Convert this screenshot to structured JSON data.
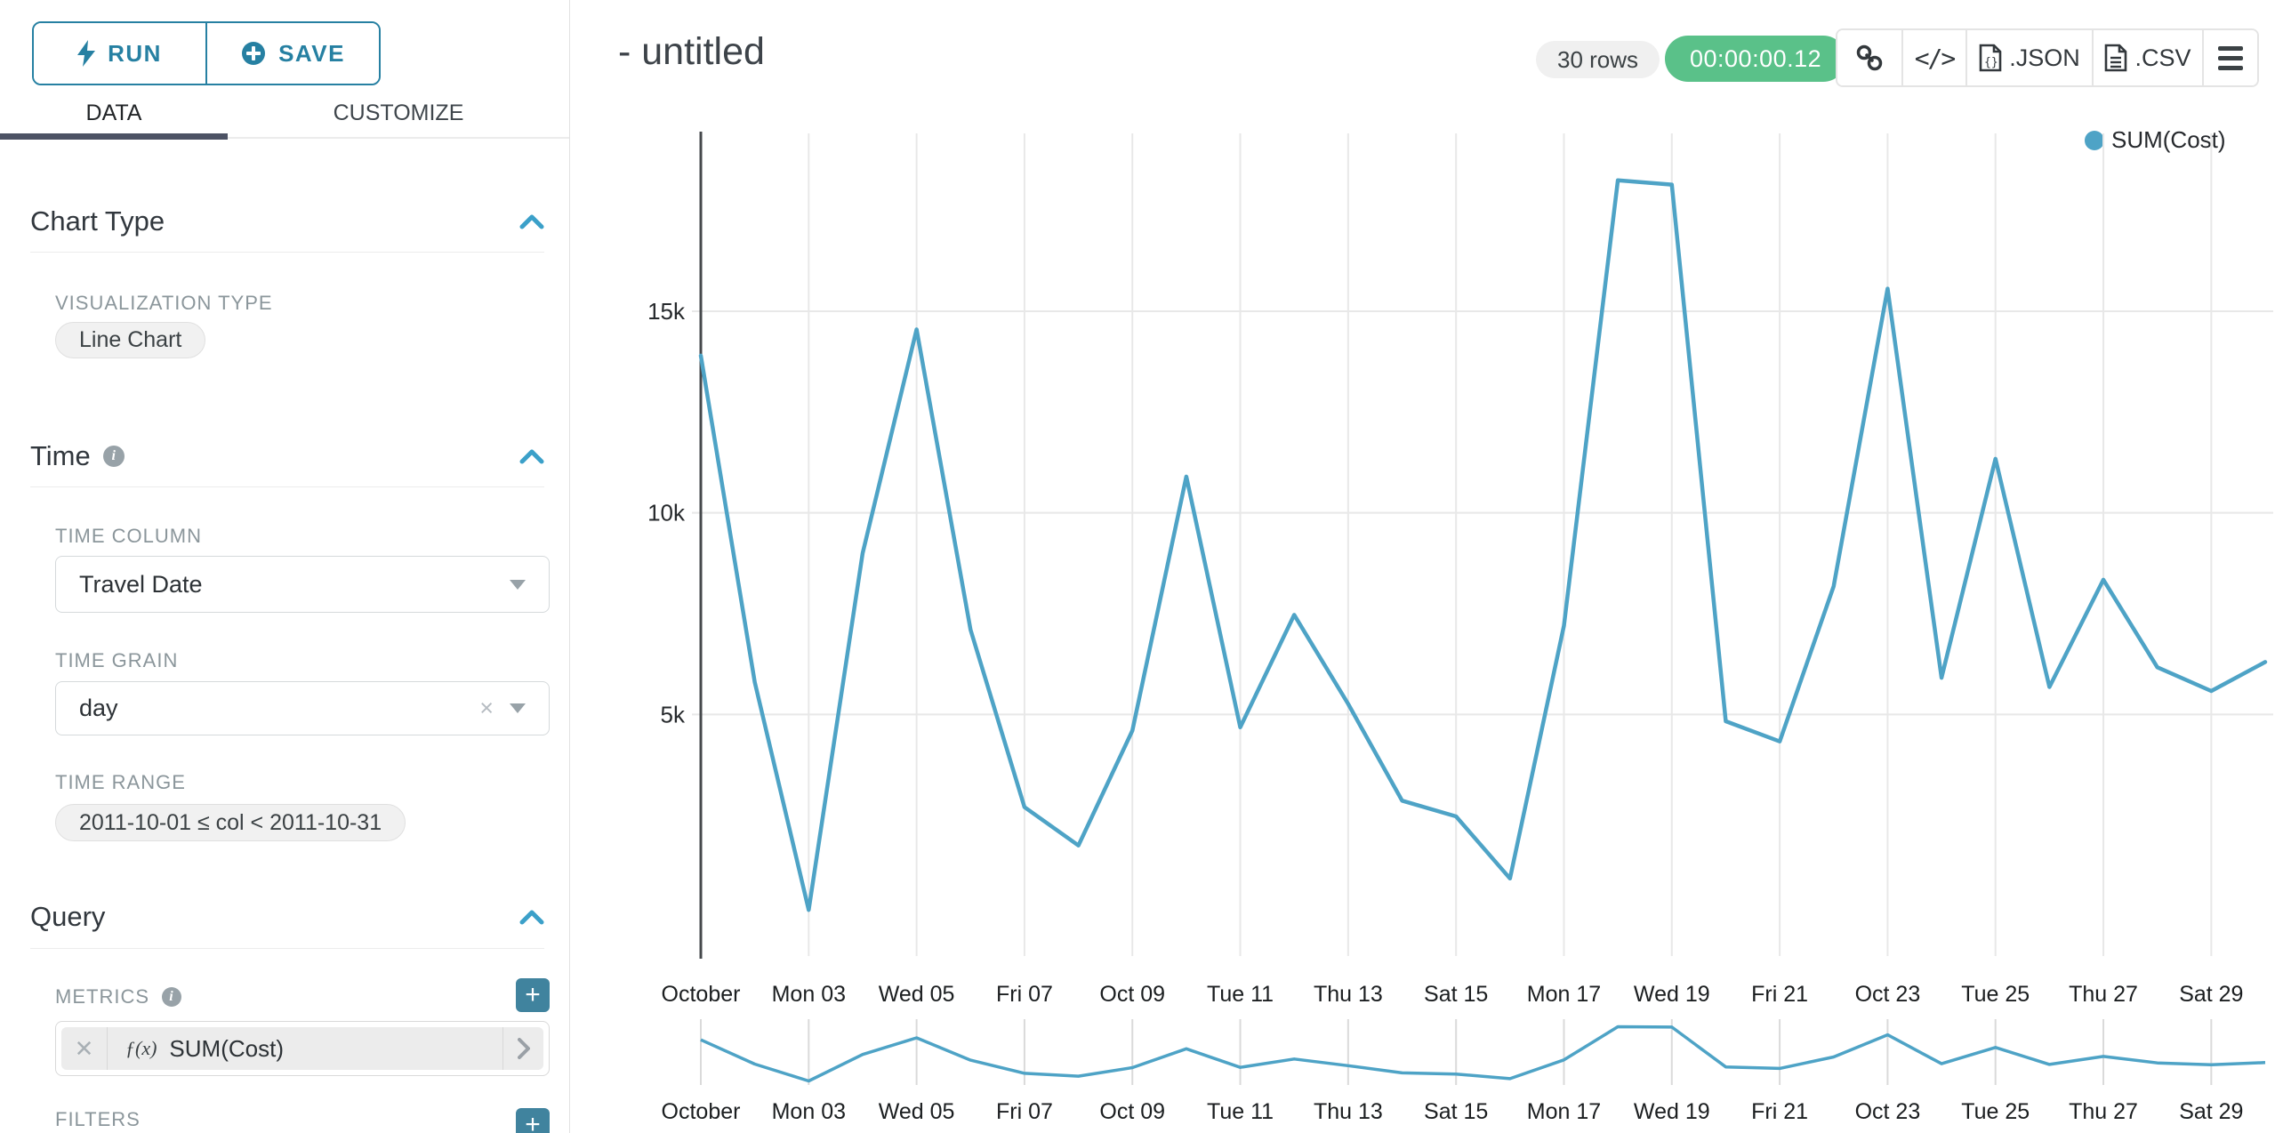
{
  "colors": {
    "accent_teal": "#2680a2",
    "chevron_teal": "#3ba0c9",
    "plus_button_teal": "#40839e",
    "success_green": "#5ac189",
    "line_teal": "#4ea3c6",
    "tab_underline": "#4c5264"
  },
  "sidebar": {
    "run_label": "RUN",
    "save_label": "SAVE",
    "tabs": [
      {
        "label": "DATA",
        "active": true
      },
      {
        "label": "CUSTOMIZE",
        "active": false
      }
    ],
    "chart_type": {
      "title": "Chart Type",
      "viz_label": "VISUALIZATION TYPE",
      "viz_value": "Line Chart"
    },
    "time": {
      "title": "Time",
      "column_label": "TIME COLUMN",
      "column_value": "Travel Date",
      "grain_label": "TIME GRAIN",
      "grain_value": "day",
      "range_label": "TIME RANGE",
      "range_value": "2011-10-01 ≤ col < 2011-10-31"
    },
    "query": {
      "title": "Query",
      "metrics_label": "METRICS",
      "metric_fx": "ƒ(x)",
      "metric_value": "SUM(Cost)",
      "filters_label": "FILTERS"
    }
  },
  "header": {
    "title": "- untitled",
    "rows_badge": "30 rows",
    "timer_badge": "00:00:00.12",
    "code_label": "</>",
    "json_label": ".JSON",
    "csv_label": ".CSV"
  },
  "legend": {
    "label": "SUM(Cost)"
  },
  "chart_data": {
    "type": "line",
    "title": "",
    "xlabel": "",
    "ylabel": "",
    "x": [
      "2011-10-01",
      "2011-10-02",
      "2011-10-03",
      "2011-10-04",
      "2011-10-05",
      "2011-10-06",
      "2011-10-07",
      "2011-10-08",
      "2011-10-09",
      "2011-10-10",
      "2011-10-11",
      "2011-10-12",
      "2011-10-13",
      "2011-10-14",
      "2011-10-15",
      "2011-10-16",
      "2011-10-17",
      "2011-10-18",
      "2011-10-19",
      "2011-10-20",
      "2011-10-21",
      "2011-10-22",
      "2011-10-23",
      "2011-10-24",
      "2011-10-25",
      "2011-10-26",
      "2011-10-27",
      "2011-10-28",
      "2011-10-29",
      "2011-10-30"
    ],
    "series": [
      {
        "name": "SUM(Cost)",
        "color": "#4ea3c6",
        "values": [
          13900,
          5800,
          150,
          9000,
          14550,
          7100,
          2700,
          1750,
          4600,
          10900,
          4680,
          7470,
          5260,
          2860,
          2470,
          930,
          7200,
          18250,
          18140,
          4830,
          4330,
          8180,
          15560,
          5910,
          11340,
          5680,
          8340,
          6170,
          5580,
          6300
        ]
      }
    ],
    "x_tick_indices": [
      0,
      2,
      4,
      6,
      8,
      10,
      12,
      14,
      16,
      18,
      20,
      22,
      24,
      26,
      28
    ],
    "x_tick_labels": [
      "October",
      "Mon 03",
      "Wed 05",
      "Fri 07",
      "Oct 09",
      "Tue 11",
      "Thu 13",
      "Sat 15",
      "Mon 17",
      "Wed 19",
      "Fri 21",
      "Oct 23",
      "Tue 25",
      "Thu 27",
      "Sat 29"
    ],
    "yticks": [
      {
        "value": 5000,
        "label": "5k"
      },
      {
        "value": 10000,
        "label": "10k"
      },
      {
        "value": 15000,
        "label": "15k"
      }
    ],
    "ylim": [
      0,
      19300
    ],
    "grid": true,
    "legend_position": "top-right",
    "has_context_minichart": true
  }
}
